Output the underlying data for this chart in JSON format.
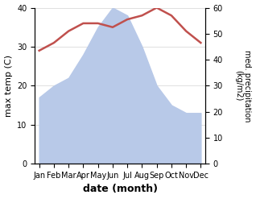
{
  "months": [
    "Jan",
    "Feb",
    "Mar",
    "Apr",
    "May",
    "Jun",
    "Jul",
    "Aug",
    "Sep",
    "Oct",
    "Nov",
    "Dec"
  ],
  "temperature": [
    29,
    31,
    34,
    36,
    36,
    35,
    37,
    38,
    40,
    38,
    34,
    31
  ],
  "precipitation_left": [
    17,
    20,
    22,
    28,
    35,
    40,
    38,
    30,
    20,
    15,
    13,
    13
  ],
  "temp_color": "#c0504d",
  "precip_color": "#b8c9e8",
  "ylabel_left": "max temp (C)",
  "ylabel_right": "med. precipitation\n(kg/m2)",
  "xlabel": "date (month)",
  "ylim_left": [
    0,
    40
  ],
  "ylim_right": [
    0,
    60
  ],
  "yticks_left": [
    0,
    10,
    20,
    30,
    40
  ],
  "yticks_right": [
    0,
    10,
    20,
    30,
    40,
    50,
    60
  ]
}
